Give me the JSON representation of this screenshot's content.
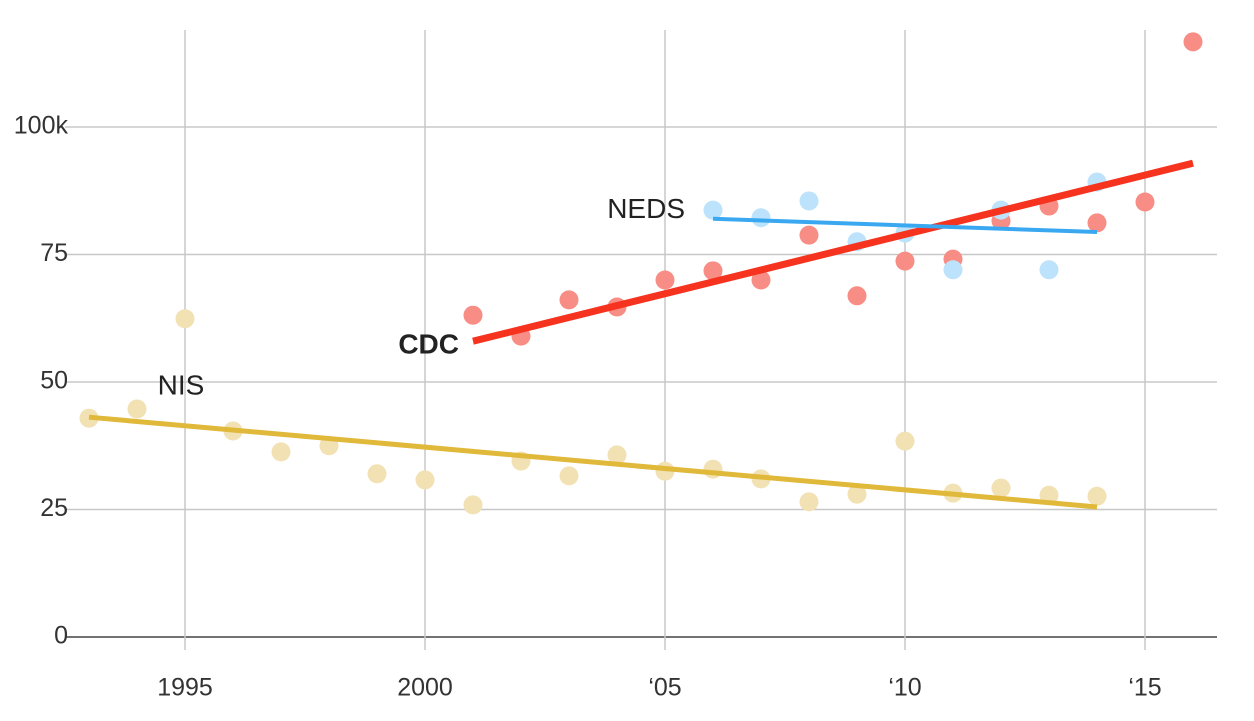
{
  "chart_data": {
    "type": "scatter-trend",
    "xlim": [
      1992.5,
      2016.5
    ],
    "xticks": [
      1995,
      2000,
      {
        "value": 2005,
        "label": "‘05"
      },
      {
        "value": 2010,
        "label": "‘10"
      },
      {
        "value": 2015,
        "label": "‘15"
      }
    ],
    "ylim": [
      0,
      120
    ],
    "yticks": [
      0,
      25,
      50,
      75,
      {
        "value": 100,
        "label": "100k"
      }
    ],
    "grid": true,
    "series": [
      {
        "name": "NIS",
        "color": "#e0b83a",
        "point_color": "#f2e1b3",
        "x": [
          1993,
          1994,
          1995,
          1996,
          1997,
          1998,
          1999,
          2000,
          2001,
          2002,
          2003,
          2004,
          2005,
          2006,
          2007,
          2008,
          2009,
          2010,
          2011,
          2012,
          2013,
          2014
        ],
        "values": [
          42.9,
          44.7,
          62.4,
          40.4,
          36.3,
          37.5,
          32.0,
          30.8,
          25.9,
          34.5,
          31.6,
          35.7,
          32.5,
          32.9,
          31.0,
          26.5,
          28.0,
          38.4,
          28.2,
          29.2,
          27.8,
          27.6
        ],
        "trend": {
          "x": [
            1993,
            2014
          ],
          "values": [
            43.1,
            25.5
          ]
        }
      },
      {
        "name": "CDC",
        "color": "#f5331f",
        "point_color": "#f78d84",
        "x": [
          2001,
          2002,
          2003,
          2004,
          2005,
          2006,
          2007,
          2008,
          2009,
          2010,
          2011,
          2012,
          2013,
          2014,
          2015,
          2016
        ],
        "values": [
          63.1,
          59.0,
          66.1,
          64.7,
          70.0,
          71.8,
          70.0,
          78.8,
          66.9,
          73.7,
          74.1,
          81.6,
          84.5,
          81.2,
          85.3,
          116.7
        ],
        "trend": {
          "x": [
            2001,
            2016
          ],
          "values": [
            58.0,
            92.9
          ]
        }
      },
      {
        "name": "NEDS",
        "color": "#3aa8f0",
        "point_color": "#bde2fb",
        "x": [
          2006,
          2007,
          2008,
          2009,
          2010,
          2011,
          2012,
          2013,
          2014
        ],
        "values": [
          83.7,
          82.2,
          85.5,
          77.5,
          79.2,
          72.0,
          83.7,
          72.0,
          89.2
        ],
        "trend": {
          "x": [
            2006,
            2014
          ],
          "values": [
            82.0,
            79.4
          ]
        }
      }
    ]
  }
}
